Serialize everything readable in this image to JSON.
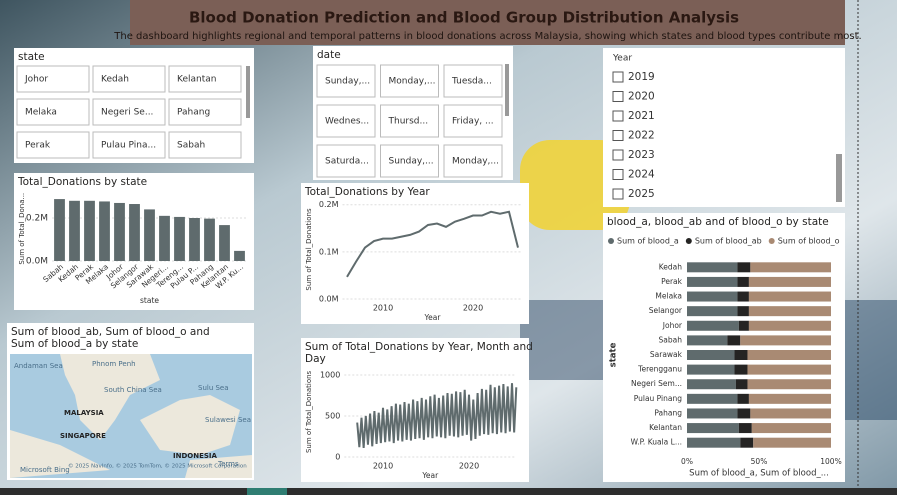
{
  "header": {
    "title": "Blood Donation Prediction and Blood Group Distribution Analysis",
    "subtitle": "The dashboard highlights regional and temporal patterns in blood donations across Malaysia, showing which states and blood types contribute most."
  },
  "state_slicer": {
    "title": "state",
    "items": [
      "Johor",
      "Kedah",
      "Kelantan",
      "Melaka",
      "Negeri Se...",
      "Pahang",
      "Perak",
      "Pulau Pina...",
      "Sabah"
    ]
  },
  "date_slicer": {
    "title": "date",
    "items": [
      "Sunday,...",
      "Monday,...",
      "Tuesda...",
      "Wednes...",
      "Thursd...",
      "Friday, ...",
      "Saturda...",
      "Sunday,...",
      "Monday,..."
    ]
  },
  "year_slicer": {
    "title": "Year",
    "items": [
      "2019",
      "2020",
      "2021",
      "2022",
      "2023",
      "2024",
      "2025"
    ]
  },
  "map": {
    "title": "Sum of blood_ab, Sum of blood_o and Sum of blood_a by state",
    "labels": [
      "Andaman Sea",
      "Phnom Penh",
      "South China Sea",
      "Sulu Sea",
      "MALAYSIA",
      "SINGAPORE",
      "Sulawesi Sea",
      "INDONESIA",
      "Microsoft Bing",
      "© 2025 NavInfo, © 2025 TomTom, © 2025 Microsoft Corporation",
      "Terms"
    ]
  },
  "chart_data": [
    {
      "type": "bar",
      "title": "Total_Donations by state",
      "x_label": "state",
      "y_label": "Sum of Total_Dona...",
      "categories": [
        "Sabah",
        "Kedah",
        "Perak",
        "Melaka",
        "Johor",
        "Selangor",
        "Sarawak",
        "Negeri...",
        "Tereng...",
        "Pulau P...",
        "Pahang",
        "Kelantan",
        "W.P. Ku..."
      ],
      "values": [
        288000,
        280000,
        280000,
        277000,
        270000,
        265000,
        240000,
        210000,
        205000,
        200000,
        197000,
        167000,
        47000
      ],
      "color": "#5f6b6d",
      "ylim": [
        0,
        300000
      ],
      "yticks": [
        {
          "value": 0,
          "label": "0.0M"
        },
        {
          "value": 200000,
          "label": "0.2M"
        }
      ],
      "grid": true
    },
    {
      "type": "line",
      "title": "Total_Donations by Year",
      "x_label": "Year",
      "y_label": "Sum of Total_Donations",
      "x": [
        2006,
        2007,
        2008,
        2009,
        2010,
        2011,
        2012,
        2013,
        2014,
        2015,
        2016,
        2017,
        2018,
        2019,
        2020,
        2021,
        2022,
        2023,
        2024,
        2025
      ],
      "values": [
        47000,
        79000,
        109000,
        123000,
        128000,
        128000,
        132000,
        136000,
        143000,
        157000,
        160000,
        153000,
        164000,
        170000,
        177000,
        177000,
        185000,
        181000,
        185000,
        109000
      ],
      "color": "#5f6b6d",
      "xlim": [
        2005.5,
        2025.5
      ],
      "xticks": [
        2010,
        2020
      ],
      "ylim": [
        0,
        210000
      ],
      "yticks": [
        {
          "value": 0,
          "label": "0.0M"
        },
        {
          "value": 100000,
          "label": "0.1M"
        },
        {
          "value": 200000,
          "label": "0.2M"
        }
      ],
      "grid": true
    },
    {
      "type": "line",
      "title": "Sum of Total_Donations by Year, Month and Day",
      "x_label": "Year",
      "y_label": "Sum of Total_Donations",
      "x": [
        2007,
        2007.25,
        2007.5,
        2007.75,
        2008,
        2008.25,
        2008.5,
        2008.75,
        2009,
        2009.25,
        2009.5,
        2009.75,
        2010,
        2010.25,
        2010.5,
        2010.75,
        2011,
        2011.25,
        2011.5,
        2011.75,
        2012,
        2012.25,
        2012.5,
        2012.75,
        2013,
        2013.25,
        2013.5,
        2013.75,
        2014,
        2014.25,
        2014.5,
        2014.75,
        2015,
        2015.25,
        2015.5,
        2015.75,
        2016,
        2016.25,
        2016.5,
        2016.75,
        2017,
        2017.25,
        2017.5,
        2017.75,
        2018,
        2018.25,
        2018.5,
        2018.75,
        2019,
        2019.25,
        2019.5,
        2019.75,
        2020,
        2020.25,
        2020.5,
        2020.75,
        2021,
        2021.25,
        2021.5,
        2021.75,
        2022,
        2022.25,
        2022.5,
        2022.75,
        2023,
        2023.25,
        2023.5,
        2023.75,
        2024,
        2024.25,
        2024.5,
        2024.75,
        2025,
        2025.25,
        2025.5
      ],
      "values": [
        420,
        120,
        480,
        110,
        500,
        150,
        530,
        130,
        560,
        160,
        540,
        170,
        600,
        180,
        580,
        190,
        620,
        170,
        650,
        200,
        640,
        190,
        670,
        210,
        650,
        200,
        700,
        220,
        680,
        230,
        720,
        210,
        700,
        240,
        740,
        230,
        760,
        250,
        720,
        240,
        750,
        230,
        780,
        260,
        770,
        250,
        800,
        240,
        790,
        260,
        820,
        270,
        760,
        200,
        700,
        220,
        780,
        260,
        830,
        280,
        820,
        270,
        880,
        290,
        850,
        280,
        870,
        300,
        890,
        290,
        860,
        310,
        900,
        300,
        850
      ],
      "color": "#5f6b6d",
      "xlim": [
        2005.5,
        2025.5
      ],
      "xticks": [
        2010,
        2020
      ],
      "ylim": [
        0,
        1100
      ],
      "yticks": [
        0,
        500,
        1000
      ],
      "grid": true
    },
    {
      "type": "stacked-hbar",
      "title": "blood_a, blood_ab and of blood_o by state",
      "x_label": "Sum of blood_a, Sum of blood_...",
      "y_label": "state",
      "categories": [
        "Kedah",
        "Perak",
        "Melaka",
        "Selangor",
        "Johor",
        "Sabah",
        "Sarawak",
        "Terengganu",
        "Negeri Sem...",
        "Pulau Pinang",
        "Pahang",
        "Kelantan",
        "W.P. Kuala L..."
      ],
      "series": [
        {
          "name": "Sum of blood_a",
          "color": "#5f6b6d",
          "values": [
            35,
            35,
            35,
            35,
            36,
            28,
            33,
            33,
            34,
            35,
            35,
            36,
            37
          ]
        },
        {
          "name": "Sum of blood_ab",
          "color": "#252423",
          "values": [
            9,
            8,
            8,
            8,
            7,
            9,
            9,
            9,
            8,
            8,
            9,
            9,
            9
          ]
        },
        {
          "name": "Sum of blood_o",
          "color": "#a98a73",
          "values": [
            56,
            57,
            57,
            57,
            57,
            63,
            58,
            58,
            58,
            57,
            56,
            55,
            54
          ]
        }
      ],
      "xlim": [
        0,
        100
      ],
      "xticks": [
        {
          "value": 0,
          "label": "0%"
        },
        {
          "value": 50,
          "label": "50%"
        },
        {
          "value": 100,
          "label": "100%"
        }
      ]
    }
  ]
}
